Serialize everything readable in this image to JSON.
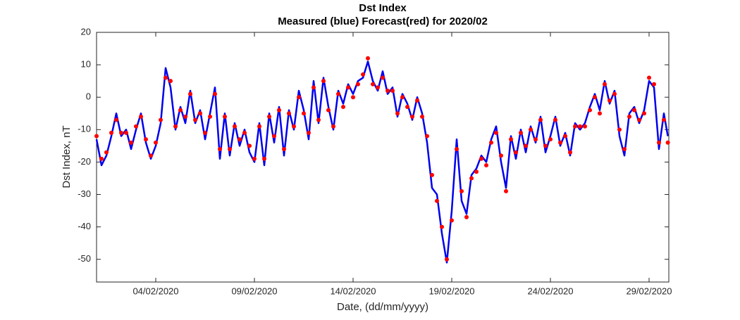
{
  "chart_data": {
    "type": "line",
    "title": "Dst Index",
    "subtitle": "Measured (blue) Forecast(red) for 2020/02",
    "x_label": "Date, (dd/mm/yyyy)",
    "y_label": "Dst Index, nT",
    "xlim": [
      1,
      30
    ],
    "ylim": [
      -57,
      20
    ],
    "xticks": [
      {
        "value": 4,
        "label": "04/02/2020"
      },
      {
        "value": 9,
        "label": "09/02/2020"
      },
      {
        "value": 14,
        "label": "14/02/2020"
      },
      {
        "value": 19,
        "label": "19/02/2020"
      },
      {
        "value": 24,
        "label": "24/02/2020"
      },
      {
        "value": 29,
        "label": "29/02/2020"
      }
    ],
    "yticks": [
      -50,
      -40,
      -30,
      -20,
      -10,
      0,
      10,
      20
    ],
    "x": [
      1,
      1.25,
      1.5,
      1.75,
      2,
      2.25,
      2.5,
      2.75,
      3,
      3.25,
      3.5,
      3.75,
      4,
      4.25,
      4.5,
      4.75,
      5,
      5.25,
      5.5,
      5.75,
      6,
      6.25,
      6.5,
      6.75,
      7,
      7.25,
      7.5,
      7.75,
      8,
      8.25,
      8.5,
      8.75,
      9,
      9.25,
      9.5,
      9.75,
      10,
      10.25,
      10.5,
      10.75,
      11,
      11.25,
      11.5,
      11.75,
      12,
      12.25,
      12.5,
      12.75,
      13,
      13.25,
      13.5,
      13.75,
      14,
      14.25,
      14.5,
      14.75,
      15,
      15.25,
      15.5,
      15.75,
      16,
      16.25,
      16.5,
      16.75,
      17,
      17.25,
      17.5,
      17.75,
      18,
      18.25,
      18.5,
      18.75,
      19,
      19.25,
      19.5,
      19.75,
      20,
      20.25,
      20.5,
      20.75,
      21,
      21.25,
      21.5,
      21.75,
      22,
      22.25,
      22.5,
      22.75,
      23,
      23.25,
      23.5,
      23.75,
      24,
      24.25,
      24.5,
      24.75,
      25,
      25.25,
      25.5,
      25.75,
      26,
      26.25,
      26.5,
      26.75,
      27,
      27.25,
      27.5,
      27.75,
      28,
      28.25,
      28.5,
      28.75,
      29,
      29.25,
      29.5,
      29.75,
      29.95
    ],
    "series": [
      {
        "color": "#0000ee",
        "mode": "line",
        "values": [
          -13,
          -21,
          -18,
          -12,
          -5,
          -12,
          -10,
          -16,
          -10,
          -5,
          -14,
          -19,
          -15,
          -8,
          9,
          3,
          -10,
          -3,
          -8,
          2,
          -8,
          -4,
          -13,
          -5,
          3,
          -19,
          -5,
          -18,
          -8,
          -15,
          -10,
          -17,
          -20,
          -8,
          -21,
          -5,
          -14,
          -3,
          -18,
          -4,
          -10,
          2,
          -4,
          -13,
          5,
          -8,
          6,
          -3,
          -10,
          2,
          -2,
          4,
          1,
          5,
          6,
          11,
          5,
          2,
          8,
          1,
          3,
          -6,
          1,
          -2,
          -7,
          0,
          -5,
          -14,
          -28,
          -30,
          -42,
          -51,
          -35,
          -13,
          -32,
          -36,
          -24,
          -22,
          -18,
          -20,
          -13,
          -9,
          -20,
          -28,
          -12,
          -19,
          -10,
          -17,
          -9,
          -14,
          -6,
          -17,
          -12,
          -6,
          -15,
          -11,
          -18,
          -8,
          -10,
          -8,
          -3,
          1,
          -4,
          5,
          -2,
          2,
          -12,
          -18,
          -5,
          -3,
          -8,
          -4,
          5,
          3,
          -16,
          -5,
          -12
        ]
      },
      {
        "color": "#ff0000",
        "mode": "markers",
        "values": [
          -12,
          -19,
          -17,
          -11,
          -7,
          -11,
          -11,
          -14,
          -9,
          -6,
          -13,
          -18,
          -14,
          -7,
          6,
          5,
          -9,
          -4,
          -6,
          1,
          -7,
          -5,
          -11,
          -6,
          1,
          -16,
          -6,
          -16,
          -9,
          -13,
          -11,
          -15,
          -19,
          -9,
          -19,
          -6,
          -12,
          -4,
          -16,
          -5,
          -9,
          0,
          -5,
          -11,
          3,
          -7,
          5,
          -4,
          -9,
          1,
          -3,
          3,
          0,
          4,
          7,
          12,
          4,
          3,
          6,
          2,
          2,
          -5,
          0,
          -3,
          -6,
          -1,
          -6,
          -12,
          -24,
          -32,
          -40,
          -50,
          -38,
          -16,
          -29,
          -37,
          -25,
          -23,
          -19,
          -21,
          -14,
          -11,
          -18,
          -29,
          -13,
          -17,
          -11,
          -15,
          -10,
          -13,
          -7,
          -15,
          -13,
          -7,
          -14,
          -12,
          -17,
          -9,
          -9,
          -9,
          -4,
          0,
          -5,
          4,
          -1,
          1,
          -10,
          -16,
          -6,
          -4,
          -7,
          -5,
          6,
          4,
          -14,
          -7,
          -14
        ]
      }
    ]
  }
}
